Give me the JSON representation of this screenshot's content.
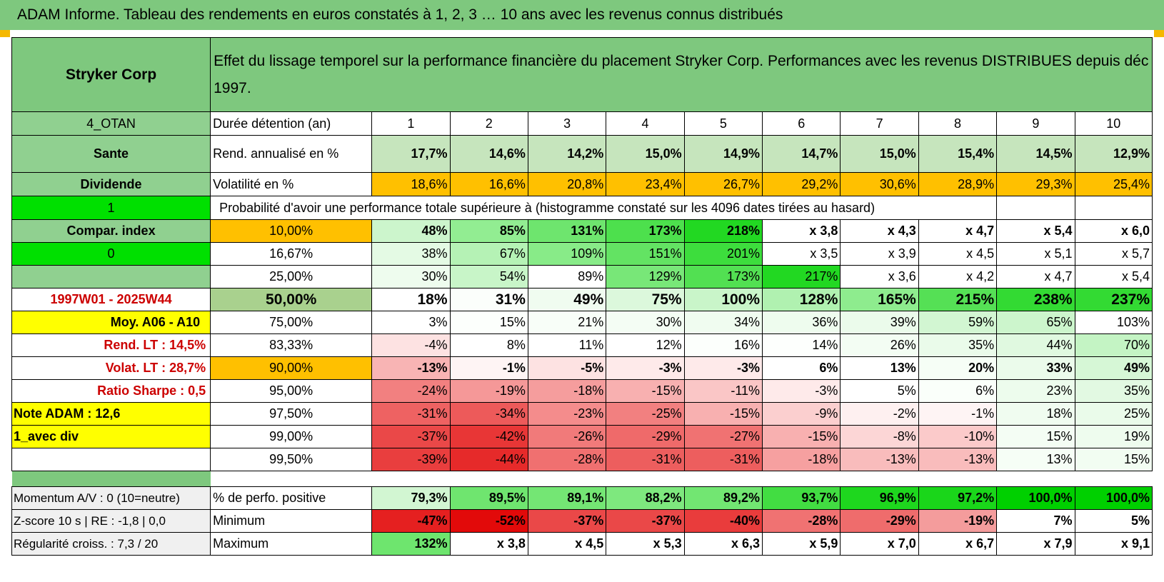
{
  "title": "ADAM Informe. Tableau des rendements en euros constatés à 1, 2, 3 … 10 ans avec les revenus connus distribués",
  "header": {
    "company": "Stryker Corp",
    "description": "Effet du lissage temporel sur la performance financière du placement Stryker Corp. Performances avec les revenus DISTRIBUES depuis déc 1997."
  },
  "side": {
    "group": "4_OTAN",
    "sector": "Sante",
    "type": "Dividende",
    "flag1": "1",
    "compar_index": "Compar. index",
    "flag0": "0",
    "period": "1997W01 - 2025W44",
    "moy": "Moy. A06 - A10",
    "rend_lt": "Rend. LT :    14,5%",
    "volat_lt": "Volat. LT :    28,7%",
    "sharpe": "Ratio Sharpe :     0,5",
    "note": "Note ADAM : 12,6",
    "avec_div": "1_avec div",
    "momentum": "Momentum A/V : 0 (10=neutre)",
    "zscore": "Z-score 10 s | RE : -1,8 | 0,0",
    "regularite": "Régularité croiss. : 7,3 / 20"
  },
  "labels": {
    "duree": "Durée détention (an)",
    "rend": "Rend. annualisé en %",
    "volat": "Volatilité en %",
    "proba": "Probabilité d'avoir une performance totale supérieure à (histogramme constaté sur les 4096 dates tirées au hasard)",
    "pct_pos": "% de perfo. positive",
    "min": "Minimum",
    "max": "Maximum"
  },
  "years": [
    "1",
    "2",
    "3",
    "4",
    "5",
    "6",
    "7",
    "8",
    "9",
    "10"
  ],
  "rend": [
    "17,7%",
    "14,6%",
    "14,2%",
    "15,0%",
    "14,9%",
    "14,7%",
    "15,0%",
    "15,4%",
    "14,5%",
    "12,9%"
  ],
  "volat": [
    "18,6%",
    "16,6%",
    "20,8%",
    "23,4%",
    "26,7%",
    "29,2%",
    "30,6%",
    "28,9%",
    "29,3%",
    "25,4%"
  ],
  "proba_rows": [
    {
      "p": "10,00%",
      "vals": [
        "48%",
        "85%",
        "131%",
        "173%",
        "218%",
        "x 3,8",
        "x 4,3",
        "x 4,7",
        "x 5,4",
        "x 6,0"
      ]
    },
    {
      "p": "16,67%",
      "vals": [
        "38%",
        "67%",
        "109%",
        "151%",
        "201%",
        "x 3,5",
        "x 3,9",
        "x 4,5",
        "x 5,1",
        "x 5,7"
      ]
    },
    {
      "p": "25,00%",
      "vals": [
        "30%",
        "54%",
        "89%",
        "129%",
        "173%",
        "217%",
        "x 3,6",
        "x 4,2",
        "x 4,7",
        "x 5,4"
      ]
    },
    {
      "p": "50,00%",
      "vals": [
        "18%",
        "31%",
        "49%",
        "75%",
        "100%",
        "128%",
        "165%",
        "215%",
        "238%",
        "237%"
      ]
    },
    {
      "p": "75,00%",
      "vals": [
        "3%",
        "15%",
        "21%",
        "30%",
        "34%",
        "36%",
        "39%",
        "59%",
        "65%",
        "103%"
      ]
    },
    {
      "p": "83,33%",
      "vals": [
        "-4%",
        "8%",
        "11%",
        "12%",
        "16%",
        "14%",
        "26%",
        "35%",
        "44%",
        "70%"
      ]
    },
    {
      "p": "90,00%",
      "vals": [
        "-13%",
        "-1%",
        "-5%",
        "-3%",
        "-3%",
        "6%",
        "13%",
        "20%",
        "33%",
        "49%"
      ]
    },
    {
      "p": "95,00%",
      "vals": [
        "-24%",
        "-19%",
        "-18%",
        "-15%",
        "-11%",
        "-3%",
        "5%",
        "6%",
        "23%",
        "35%"
      ]
    },
    {
      "p": "97,50%",
      "vals": [
        "-31%",
        "-34%",
        "-23%",
        "-25%",
        "-15%",
        "-9%",
        "-2%",
        "-1%",
        "18%",
        "25%"
      ]
    },
    {
      "p": "99,00%",
      "vals": [
        "-37%",
        "-42%",
        "-26%",
        "-29%",
        "-27%",
        "-15%",
        "-8%",
        "-10%",
        "15%",
        "19%"
      ]
    },
    {
      "p": "99,50%",
      "vals": [
        "-39%",
        "-44%",
        "-28%",
        "-31%",
        "-31%",
        "-18%",
        "-13%",
        "-13%",
        "13%",
        "15%"
      ]
    }
  ],
  "pct_pos": [
    "79,3%",
    "89,5%",
    "89,1%",
    "88,2%",
    "89,2%",
    "93,7%",
    "96,9%",
    "97,2%",
    "100,0%",
    "100,0%"
  ],
  "min": [
    "-47%",
    "-52%",
    "-37%",
    "-37%",
    "-40%",
    "-28%",
    "-29%",
    "-19%",
    "7%",
    "5%"
  ],
  "max": [
    "132%",
    "x 3,8",
    "x 4,5",
    "x 5,3",
    "x 6,3",
    "x 5,9",
    "x 7,0",
    "x 6,7",
    "x 7,9",
    "x 9,1"
  ],
  "colors": {
    "header_green": "#7ec87e",
    "bright_green": "#00e000",
    "orange": "#ffc000",
    "yellow": "#ffff00",
    "dark_red": "#ff0000",
    "label_red": "#cc0000"
  }
}
